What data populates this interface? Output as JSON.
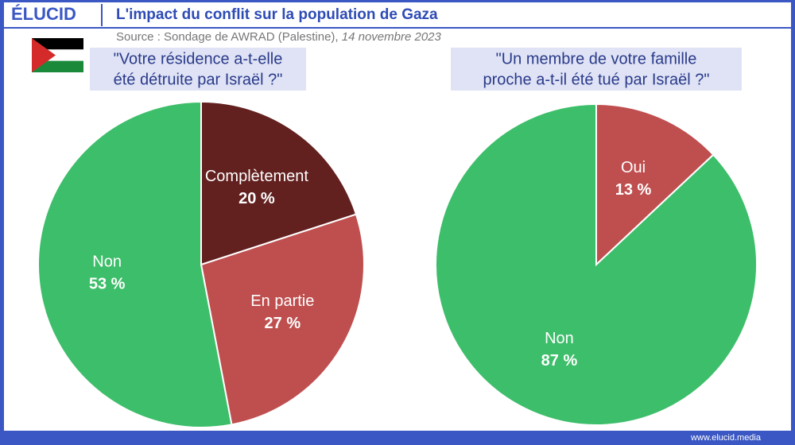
{
  "header": {
    "brand": "ÉLUCID",
    "title": "L'impact du conflit sur la population de Gaza",
    "source": "Source : Sondage de AWRAD (Palestine), ",
    "date": "14 novembre 2023"
  },
  "footer": "www.elucid.media",
  "chart_data": [
    {
      "type": "pie",
      "title": [
        "\"Votre résidence a-t-elle",
        "été détruite par Israël ?\""
      ],
      "categories": [
        "Complètement",
        "En partie",
        "Non"
      ],
      "values": [
        20,
        27,
        53
      ],
      "value_labels": [
        "20 %",
        "27 %",
        "53 %"
      ],
      "colors": [
        "#62201f",
        "#bf4f4f",
        "#3dbe6a"
      ]
    },
    {
      "type": "pie",
      "title": [
        "\"Un membre de votre famille",
        "proche a-t-il été tué par Israël ?\""
      ],
      "categories": [
        "Oui",
        "Non"
      ],
      "values": [
        13,
        87
      ],
      "value_labels": [
        "13 %",
        "87 %"
      ],
      "colors": [
        "#bf4f4f",
        "#3dbe6a"
      ]
    }
  ]
}
